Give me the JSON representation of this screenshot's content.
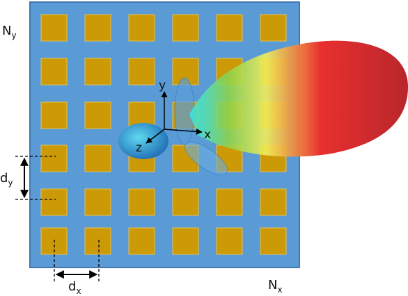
{
  "labels": {
    "ny": {
      "main": "N",
      "sub": "y"
    },
    "nx": {
      "main": "N",
      "sub": "x"
    },
    "dy": {
      "main": "d",
      "sub": "y"
    },
    "dx": {
      "main": "d",
      "sub": "x"
    }
  },
  "axes": {
    "x": "x",
    "y": "y",
    "z": "z"
  }
}
